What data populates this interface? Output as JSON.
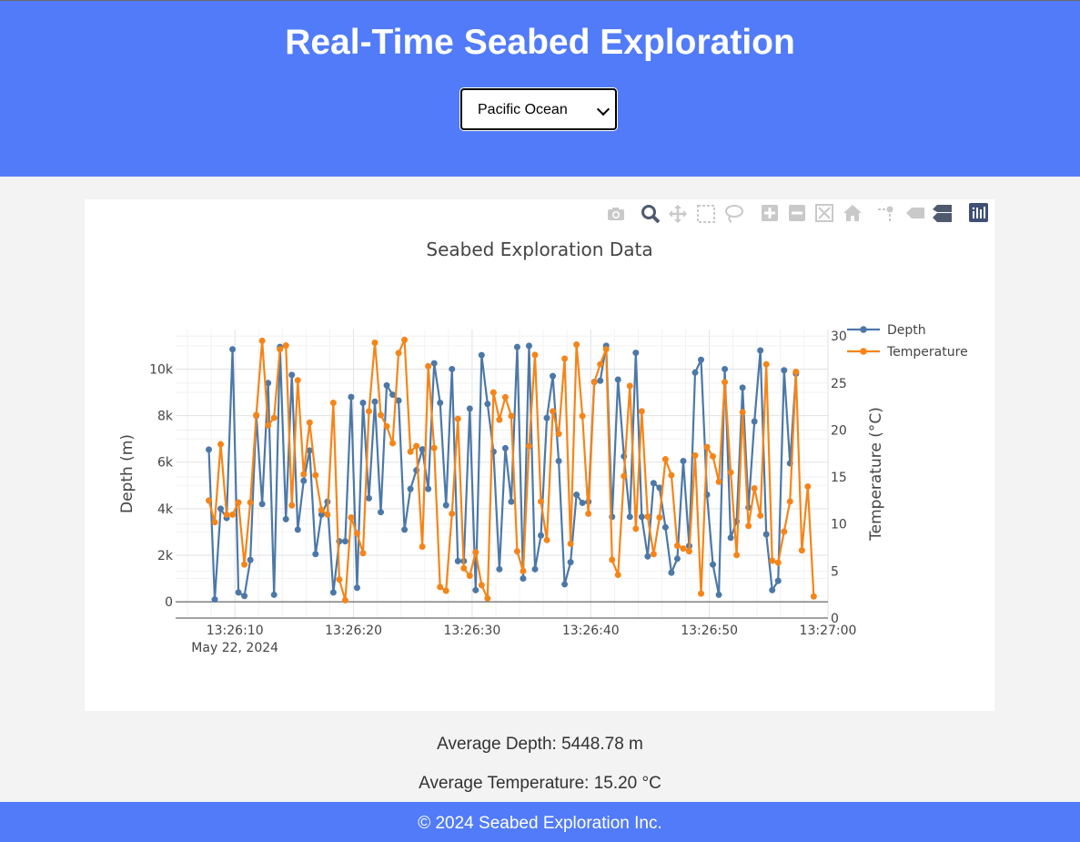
{
  "header": {
    "title": "Real-Time Seabed Exploration"
  },
  "region_select": {
    "value": "Pacific Ocean"
  },
  "modebar": {
    "icons": [
      "camera-icon",
      "zoom-icon",
      "pan-icon",
      "box-select-icon",
      "lasso-select-icon",
      "zoom-in-icon",
      "zoom-out-icon",
      "autoscale-icon",
      "reset-axes-icon",
      "spike-lines-icon",
      "hover-closest-icon",
      "hover-compare-icon",
      "plotly-logo-icon"
    ]
  },
  "summary": {
    "avg_depth": "Average Depth: 5448.78 m",
    "avg_temp": "Average Temperature: 15.20 °C"
  },
  "footer": {
    "text": "© 2024 Seabed Exploration Inc."
  },
  "chart_data": {
    "type": "line",
    "title": "Seabed Exploration Data",
    "x_start": "13:26:07.8",
    "x_step_seconds": 0.5,
    "x_axis": {
      "ticks": [
        "13:26:10",
        "13:26:20",
        "13:26:30",
        "13:26:40",
        "13:26:50",
        "13:27:00"
      ],
      "sub_label": "May 22, 2024",
      "range": [
        "13:26:05",
        "13:27:00"
      ]
    },
    "y_axis": {
      "label": "Depth (m)",
      "range": [
        -700,
        11700
      ],
      "ticks": [
        "0",
        "2k",
        "4k",
        "6k",
        "8k",
        "10k"
      ],
      "tick_values": [
        0,
        2000,
        4000,
        6000,
        8000,
        10000
      ]
    },
    "y2_axis": {
      "label": "Temperature (°C)",
      "range": [
        0,
        30.7
      ],
      "ticks": [
        "0",
        "5",
        "10",
        "15",
        "20",
        "25",
        "30"
      ],
      "tick_values": [
        0,
        5,
        10,
        15,
        20,
        25,
        30
      ]
    },
    "legend_position": "top-right",
    "grid": true,
    "series": [
      {
        "name": "Depth",
        "axis": "y",
        "color": "#4c78a8",
        "values": [
          6540,
          100,
          4000,
          3600,
          10850,
          400,
          250,
          1800,
          8000,
          4200,
          9400,
          300,
          10950,
          3550,
          9750,
          3100,
          5200,
          6500,
          2050,
          3750,
          4300,
          400,
          2600,
          2600,
          8800,
          600,
          8550,
          4450,
          8600,
          3850,
          9300,
          8900,
          8650,
          3100,
          4850,
          5650,
          6550,
          4850,
          10250,
          8550,
          4150,
          10000,
          1750,
          1750,
          8300,
          500,
          10600,
          8500,
          6450,
          1400,
          6600,
          4300,
          10950,
          1000,
          11000,
          1400,
          2850,
          7900,
          9700,
          6050,
          750,
          1700,
          4600,
          4250,
          4300,
          9450,
          9500,
          11000,
          3650,
          9550,
          6250,
          3650,
          10700,
          3650,
          1950,
          5100,
          4900,
          3200,
          1250,
          1850,
          6050,
          2400,
          9850,
          10400,
          4600,
          1600,
          300,
          10000,
          2750,
          3450,
          9200,
          4050,
          7750,
          10800,
          2900,
          500,
          900,
          9950,
          5950,
          9800
        ]
      },
      {
        "name": "Temperature",
        "axis": "y2",
        "color": "#f58518",
        "values": [
          12.5,
          10.2,
          18.5,
          11,
          11,
          12.3,
          5.7,
          12.3,
          21.6,
          29.5,
          20.5,
          21.3,
          28.6,
          29,
          12,
          25.3,
          15.3,
          20.8,
          15.2,
          11.5,
          11,
          22.9,
          4.1,
          1.9,
          10.7,
          9,
          6.9,
          22,
          29.3,
          21.6,
          20.4,
          18.6,
          28.2,
          29.6,
          17.7,
          18.3,
          7.6,
          26.8,
          18.1,
          3.3,
          2.9,
          11.1,
          21.2,
          5.3,
          4.5,
          7,
          3.5,
          2.1,
          24,
          21.1,
          23.5,
          21.5,
          7.1,
          5,
          18.3,
          28,
          12.4,
          8.3,
          22,
          19.6,
          27.6,
          7.9,
          29.1,
          21.5,
          11.1,
          25.1,
          27,
          28.6,
          6.2,
          4.6,
          15.1,
          24.7,
          9.5,
          22,
          10.8,
          6.8,
          10.7,
          16.9,
          15.2,
          7.7,
          7.4,
          7.1,
          17.3,
          2.6,
          18.2,
          17.2,
          14.5,
          25.1,
          15.5,
          6.7,
          21.9,
          9.8,
          13.8,
          10.9,
          27,
          6.1,
          5.9,
          9.2,
          12.4,
          26.2,
          7.2,
          14,
          2.3
        ]
      }
    ]
  }
}
